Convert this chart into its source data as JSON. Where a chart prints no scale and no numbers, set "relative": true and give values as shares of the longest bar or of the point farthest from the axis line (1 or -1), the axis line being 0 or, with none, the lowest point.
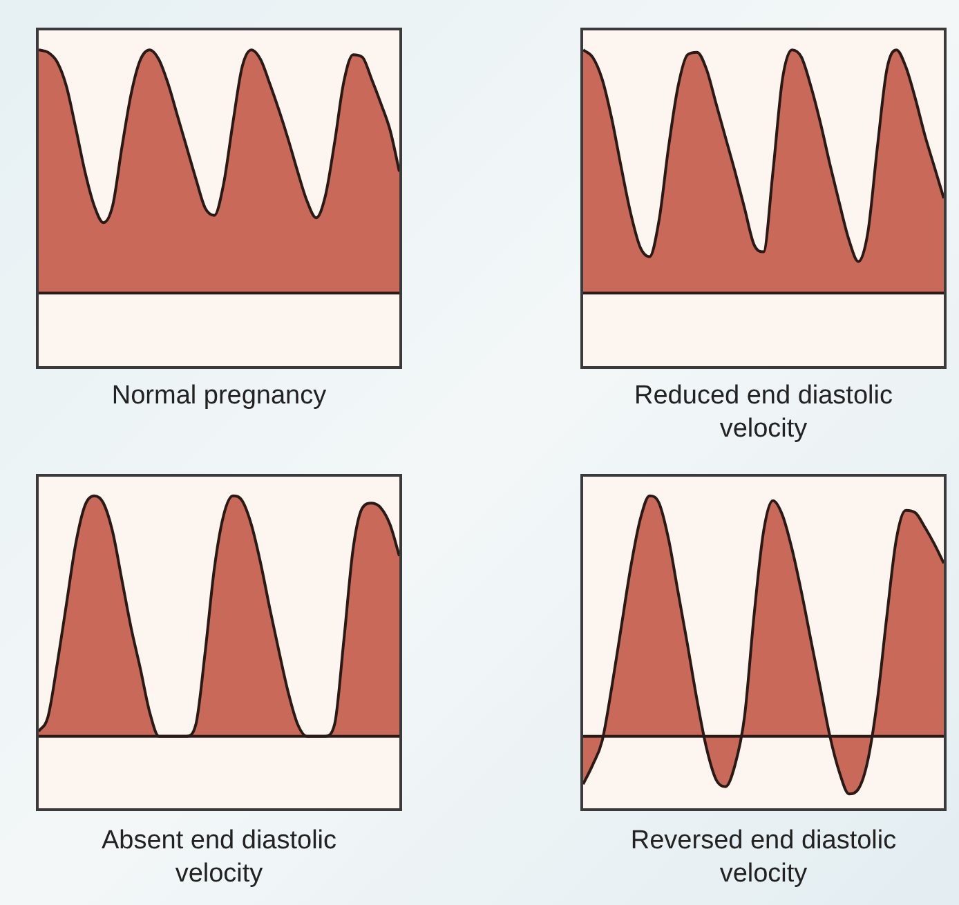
{
  "chart_data": [
    {
      "type": "area",
      "title": "Normal pregnancy",
      "relative": true,
      "color": "#c8695a",
      "categories": [
        null,
        null,
        null,
        null,
        null,
        null,
        null,
        null,
        null,
        null,
        null,
        null,
        null,
        null,
        null,
        null,
        null,
        null,
        null,
        null,
        null,
        null,
        null,
        null,
        null,
        null,
        null,
        null,
        null,
        null,
        null,
        null,
        null,
        null,
        null,
        null,
        null,
        null,
        null,
        null
      ],
      "values": [
        1.0,
        0.99,
        0.95,
        0.85,
        0.68,
        0.5,
        0.36,
        0.29,
        0.36,
        0.6,
        0.82,
        0.96,
        1.0,
        0.96,
        0.86,
        0.73,
        0.6,
        0.47,
        0.35,
        0.32,
        0.45,
        0.7,
        0.93,
        1.0,
        0.96,
        0.86,
        0.75,
        0.63,
        0.5,
        0.38,
        0.31,
        0.4,
        0.62,
        0.87,
        0.98,
        0.97,
        0.88,
        0.78,
        0.67,
        0.5
      ]
    },
    {
      "type": "area",
      "title": "Reduced end diastolic velocity",
      "relative": true,
      "color": "#c8695a",
      "categories": [
        null,
        null,
        null,
        null,
        null,
        null,
        null,
        null,
        null,
        null,
        null,
        null,
        null,
        null,
        null,
        null,
        null,
        null,
        null,
        null,
        null,
        null,
        null,
        null,
        null,
        null,
        null,
        null,
        null,
        null,
        null,
        null,
        null,
        null,
        null,
        null,
        null,
        null,
        null
      ],
      "values": [
        1.0,
        0.97,
        0.88,
        0.72,
        0.52,
        0.33,
        0.19,
        0.15,
        0.3,
        0.6,
        0.85,
        0.98,
        0.99,
        0.92,
        0.78,
        0.64,
        0.5,
        0.35,
        0.2,
        0.17,
        0.5,
        0.88,
        1.0,
        0.97,
        0.85,
        0.7,
        0.53,
        0.37,
        0.22,
        0.13,
        0.25,
        0.6,
        0.92,
        1.0,
        0.93,
        0.8,
        0.65,
        0.52,
        0.39
      ]
    },
    {
      "type": "area",
      "title": "Absent end diastolic velocity",
      "relative": true,
      "color": "#c8695a",
      "categories": [
        null,
        null,
        null,
        null,
        null,
        null,
        null,
        null,
        null,
        null,
        null,
        null,
        null,
        null,
        null,
        null,
        null,
        null,
        null,
        null,
        null,
        null,
        null,
        null,
        null,
        null,
        null,
        null,
        null,
        null,
        null,
        null,
        null,
        null,
        null,
        null,
        null,
        null,
        null,
        null
      ],
      "values": [
        0.02,
        0.08,
        0.3,
        0.55,
        0.8,
        0.96,
        1.0,
        0.97,
        0.85,
        0.65,
        0.45,
        0.28,
        0.1,
        0,
        0,
        0,
        0,
        0.05,
        0.35,
        0.7,
        0.92,
        1.0,
        0.98,
        0.88,
        0.72,
        0.53,
        0.35,
        0.18,
        0.05,
        0,
        0,
        0,
        0.05,
        0.4,
        0.78,
        0.95,
        0.97,
        0.95,
        0.88,
        0.75
      ]
    },
    {
      "type": "area",
      "title": "Reversed end diastolic velocity",
      "relative": true,
      "color": "#c8695a",
      "categories": [
        null,
        null,
        null,
        null,
        null,
        null,
        null,
        null,
        null,
        null,
        null,
        null,
        null,
        null,
        null,
        null,
        null,
        null,
        null,
        null,
        null,
        null,
        null,
        null,
        null,
        null,
        null,
        null,
        null,
        null,
        null,
        null,
        null,
        null,
        null,
        null,
        null,
        null,
        null
      ],
      "values": [
        -0.2,
        -0.12,
        -0.02,
        0.2,
        0.45,
        0.7,
        0.9,
        1.0,
        0.97,
        0.82,
        0.6,
        0.38,
        0.15,
        -0.05,
        -0.18,
        -0.21,
        -0.12,
        0.08,
        0.5,
        0.85,
        0.98,
        0.92,
        0.78,
        0.6,
        0.4,
        0.2,
        0.0,
        -0.15,
        -0.24,
        -0.22,
        -0.1,
        0.15,
        0.5,
        0.82,
        0.94,
        0.93,
        0.87,
        0.8,
        0.72
      ]
    }
  ]
}
